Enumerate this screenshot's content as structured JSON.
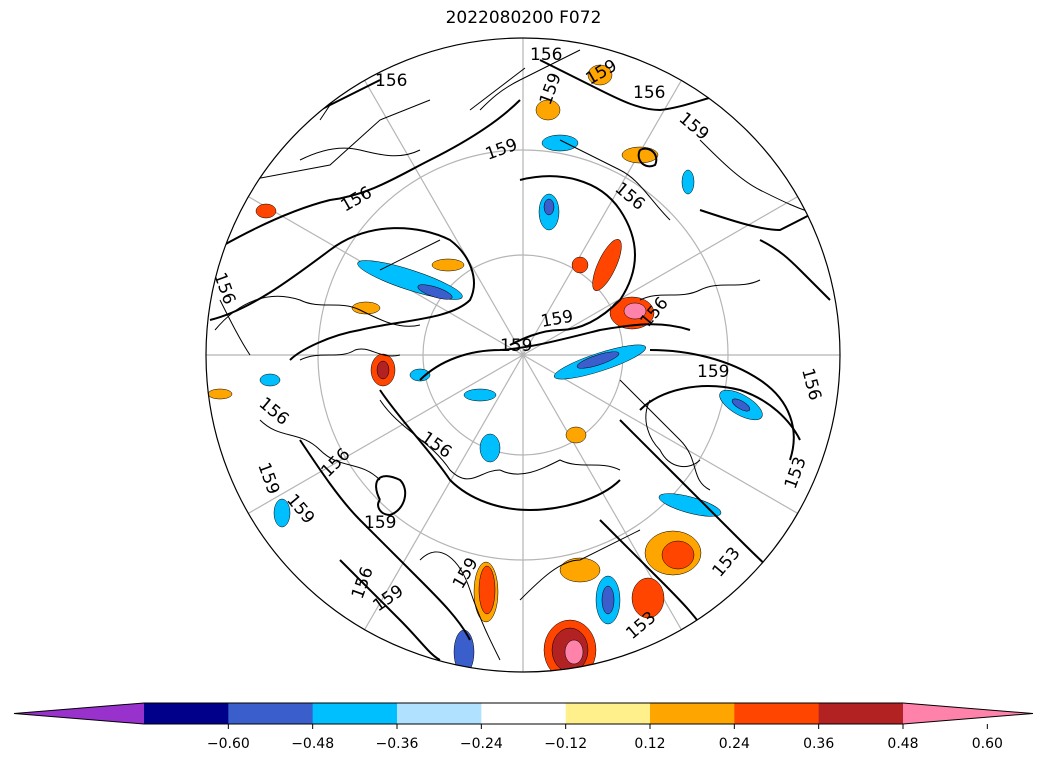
{
  "title": "2022080200 F072",
  "contour_labels": [
    "156",
    "156",
    "159",
    "156",
    "159",
    "156",
    "159",
    "156",
    "159",
    "156",
    "159",
    "159",
    "156",
    "156",
    "159",
    "156",
    "156",
    "153",
    "159",
    "153",
    "159",
    "156",
    "159",
    "159",
    "153",
    "156",
    "159"
  ],
  "colorbar": {
    "colors": [
      "#9932cc",
      "#00008b",
      "#3a5fcd",
      "#00bfff",
      "#b0e2ff",
      "#ffffff",
      "#fff08c",
      "#ffa500",
      "#ff4500",
      "#b22222",
      "#ff82ab"
    ],
    "tick_labels": [
      "−0.60",
      "−0.48",
      "−0.36",
      "−0.24",
      "−0.12",
      "0.12",
      "0.24",
      "0.36",
      "0.48",
      "0.60"
    ]
  },
  "map": {
    "projection": "north-polar-stereographic",
    "fields": [
      "shaded anomaly",
      "contour lines"
    ]
  }
}
